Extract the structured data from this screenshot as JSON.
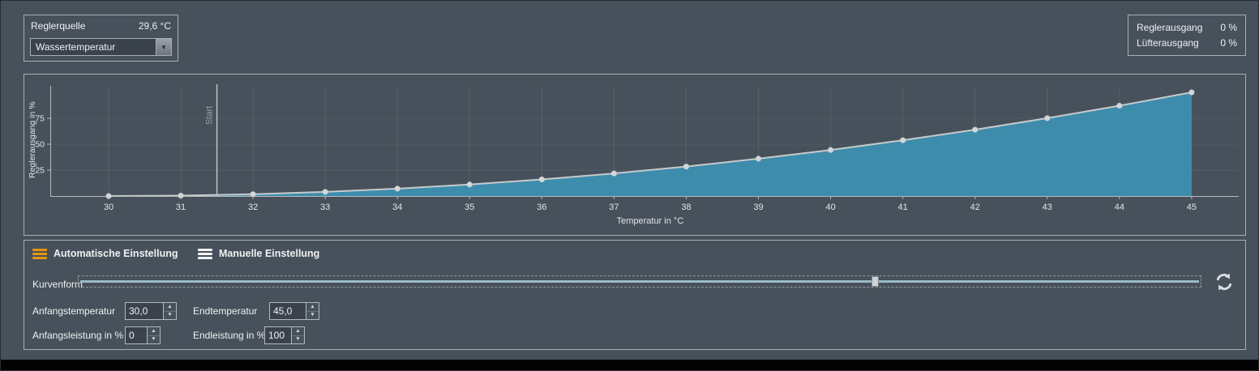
{
  "header": {
    "source_panel": {
      "label": "Reglerquelle",
      "value": "29,6 °C",
      "dropdown_value": "Wassertemperatur"
    },
    "output_panel": {
      "rows": [
        {
          "label": "Reglerausgang",
          "value": "0 %"
        },
        {
          "label": "Lüfterausgang",
          "value": "0 %"
        }
      ]
    }
  },
  "chart_data": {
    "type": "area",
    "title": "",
    "xlabel": "Temperatur in °C",
    "ylabel": "Reglerausgang in %",
    "x": [
      30,
      31,
      32,
      33,
      34,
      35,
      36,
      37,
      38,
      39,
      40,
      41,
      42,
      43,
      44,
      45
    ],
    "values": [
      0,
      0.4,
      1.8,
      4,
      7.1,
      11.1,
      16,
      21.8,
      28.4,
      36,
      44.4,
      53.8,
      64,
      75.1,
      87.1,
      100
    ],
    "xticks": [
      30,
      31,
      32,
      33,
      34,
      35,
      36,
      37,
      38,
      39,
      40,
      41,
      42,
      43,
      44,
      45
    ],
    "yticks": [
      25,
      50,
      75
    ],
    "xlim": [
      29.2,
      45.7
    ],
    "ylim": [
      0,
      100
    ],
    "grid": true,
    "legend": false,
    "start_marker": {
      "x": 31.5,
      "label": "Start"
    },
    "fill_color": "#3e8cab",
    "line_color": "#c7cacc",
    "marker_color": "#d3d6d8"
  },
  "settings": {
    "tabs": [
      {
        "label": "Automatische Einstellung",
        "icon": "menu-icon",
        "icon_color": "#e6950e"
      },
      {
        "label": "Manuelle Einstellung",
        "icon": "menu-icon",
        "icon_color": "#f2f4f5"
      }
    ],
    "curve_slider": {
      "label": "Kurvenform",
      "position_pct": 71
    },
    "fields": [
      {
        "label": "Anfangstemperatur",
        "value": "30,0"
      },
      {
        "label": "Endtemperatur",
        "value": "45,0"
      },
      {
        "label": "Anfangsleistung in %",
        "value": "0"
      },
      {
        "label": "Endleistung in %",
        "value": "100"
      }
    ]
  }
}
